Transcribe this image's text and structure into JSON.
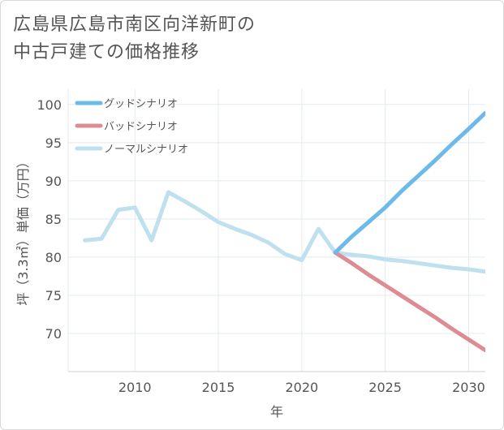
{
  "title": {
    "line1": "広島県広島市南区向洋新町の",
    "line2": "中古戸建ての価格推移"
  },
  "chart_data": {
    "type": "line",
    "title": "広島県広島市南区向洋新町の中古戸建ての価格推移",
    "xlabel": "年",
    "ylabel": "坪（3.3㎡）単価（万円）",
    "xlim": [
      2006,
      2031
    ],
    "ylim": [
      65,
      102
    ],
    "xticks": [
      2010,
      2015,
      2020,
      2025,
      2030
    ],
    "yticks": [
      70,
      75,
      80,
      85,
      90,
      95,
      100
    ],
    "grid": true,
    "legend_position": "top-left",
    "series": [
      {
        "name": "グッドシナリオ",
        "color": "#6cb9ea",
        "x": [
          2022,
          2023,
          2024,
          2025,
          2026,
          2027,
          2028,
          2029,
          2030,
          2031
        ],
        "y": [
          80.6,
          82.7,
          84.6,
          86.5,
          88.7,
          90.7,
          92.7,
          94.8,
          96.8,
          98.9
        ]
      },
      {
        "name": "バッドシナリオ",
        "color": "#de8c93",
        "x": [
          2022,
          2023,
          2024,
          2025,
          2026,
          2027,
          2028,
          2029,
          2030,
          2031
        ],
        "y": [
          80.6,
          79.2,
          77.7,
          76.3,
          74.9,
          73.5,
          72.1,
          70.6,
          69.2,
          67.8
        ]
      },
      {
        "name": "ノーマルシナリオ",
        "color": "#bfe0ef",
        "x": [
          2007,
          2008,
          2009,
          2010,
          2011,
          2012,
          2013,
          2014,
          2015,
          2016,
          2017,
          2018,
          2019,
          2020,
          2021,
          2022,
          2023,
          2024,
          2025,
          2026,
          2027,
          2028,
          2029,
          2030,
          2031
        ],
        "y": [
          82.2,
          82.4,
          86.2,
          86.5,
          82.2,
          88.5,
          87.3,
          86.0,
          84.6,
          83.7,
          82.9,
          81.9,
          80.4,
          79.6,
          83.7,
          80.6,
          80.3,
          80.1,
          79.7,
          79.5,
          79.2,
          78.9,
          78.6,
          78.4,
          78.1
        ]
      }
    ]
  }
}
